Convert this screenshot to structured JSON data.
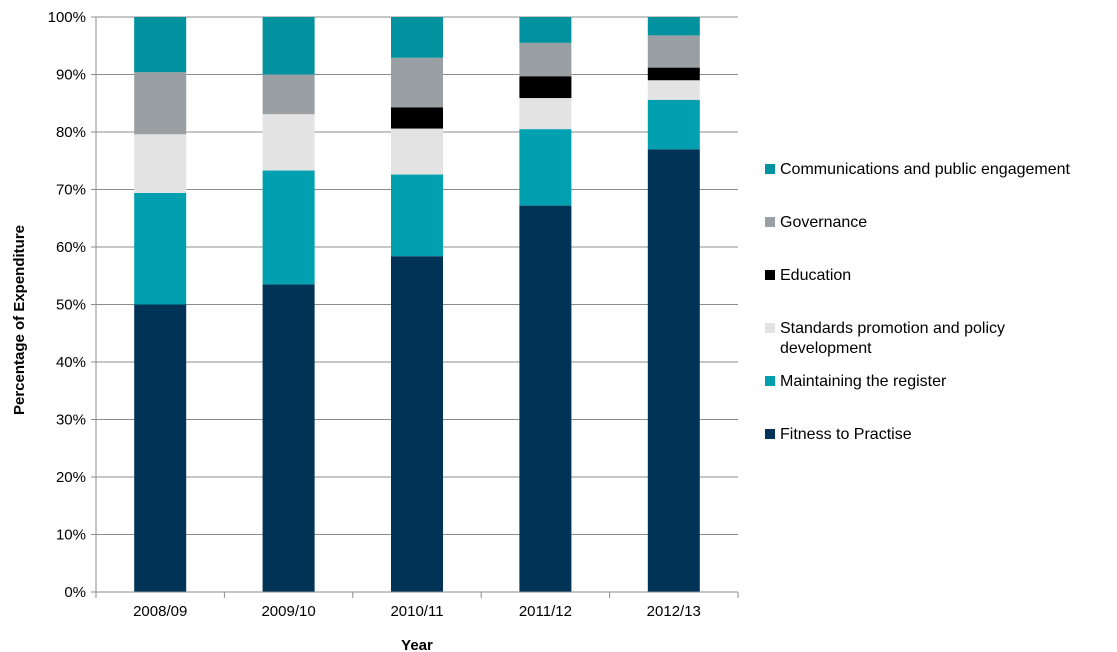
{
  "chart_data": {
    "type": "bar",
    "stacked": true,
    "categories": [
      "2008/09",
      "2009/10",
      "2010/11",
      "2011/12",
      "2012/13"
    ],
    "series": [
      {
        "name": "Fitness to Practise",
        "color": "#003356",
        "values": [
          50.0,
          53.5,
          58.4,
          67.2,
          77.0
        ]
      },
      {
        "name": "Maintaining the register",
        "color": "#00A0B0",
        "values": [
          19.4,
          19.8,
          14.2,
          13.3,
          8.6
        ]
      },
      {
        "name": "Standards promotion and policy development",
        "color": "#E3E3E3",
        "values": [
          10.2,
          9.8,
          8.0,
          5.4,
          3.4
        ]
      },
      {
        "name": "Education",
        "color": "#000000",
        "values": [
          0.0,
          0.0,
          3.7,
          3.8,
          2.2
        ]
      },
      {
        "name": "Governance",
        "color": "#9A9FA3",
        "values": [
          10.8,
          6.9,
          8.6,
          5.8,
          5.6
        ]
      },
      {
        "name": "Communications and public engagement",
        "color": "#00939F",
        "values": [
          9.6,
          10.0,
          7.1,
          4.5,
          3.2
        ]
      }
    ],
    "yticks": [
      "0%",
      "10%",
      "20%",
      "30%",
      "40%",
      "50%",
      "60%",
      "70%",
      "80%",
      "90%",
      "100%"
    ],
    "ylim": [
      0,
      100
    ],
    "xlabel": "Year",
    "ylabel": "Percentage of Expenditure",
    "grid": true,
    "legend_position": "right",
    "legend_order": [
      {
        "name": "Communications and public engagement",
        "color": "#00939F",
        "lines": [
          "Communications and public engagement"
        ]
      },
      {
        "name": "Governance",
        "color": "#9A9FA3",
        "lines": [
          "Governance"
        ]
      },
      {
        "name": "Education",
        "color": "#000000",
        "lines": [
          "Education"
        ]
      },
      {
        "name": "Standards promotion and policy development",
        "color": "#E3E3E3",
        "lines": [
          "Standards promotion and policy",
          "development"
        ]
      },
      {
        "name": "Maintaining the register",
        "color": "#00A0B0",
        "lines": [
          "Maintaining the register"
        ]
      },
      {
        "name": "Fitness to Practise",
        "color": "#003356",
        "lines": [
          "Fitness to Practise"
        ]
      }
    ]
  }
}
